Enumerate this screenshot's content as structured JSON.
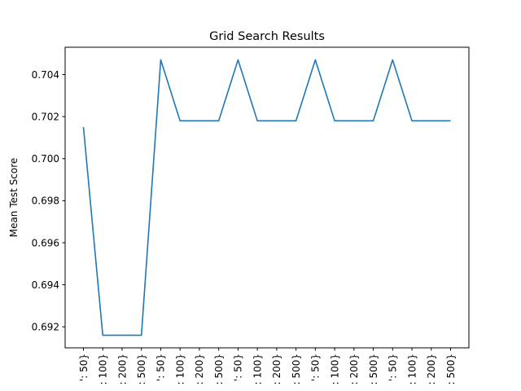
{
  "chart_data": {
    "type": "line",
    "title": "Grid Search Results",
    "xlabel": "",
    "ylabel": "Mean Test Score",
    "categories": [
      "': 50}",
      ": 100}",
      ": 200}",
      ": 500}",
      "': 50}",
      ": 100}",
      ": 200}",
      ": 500}",
      "': 50}",
      ": 100}",
      ": 200}",
      ": 500}",
      "': 50}",
      ": 100}",
      ": 200}",
      ": 500}",
      "': 50}",
      ": 100}",
      ": 200}",
      ": 500}"
    ],
    "series": [
      {
        "color": "#1f77b4",
        "values": [
          0.7015,
          0.6916,
          0.6916,
          0.6916,
          0.7047,
          0.7018,
          0.7018,
          0.7018,
          0.7047,
          0.7018,
          0.7018,
          0.7018,
          0.7047,
          0.7018,
          0.7018,
          0.7018,
          0.7047,
          0.7018,
          0.7018,
          0.7018
        ]
      }
    ],
    "yticks": [
      "0.692",
      "0.694",
      "0.696",
      "0.698",
      "0.700",
      "0.702",
      "0.704"
    ],
    "ylim": [
      0.691,
      0.7053
    ],
    "grid": false,
    "legend": "none"
  }
}
